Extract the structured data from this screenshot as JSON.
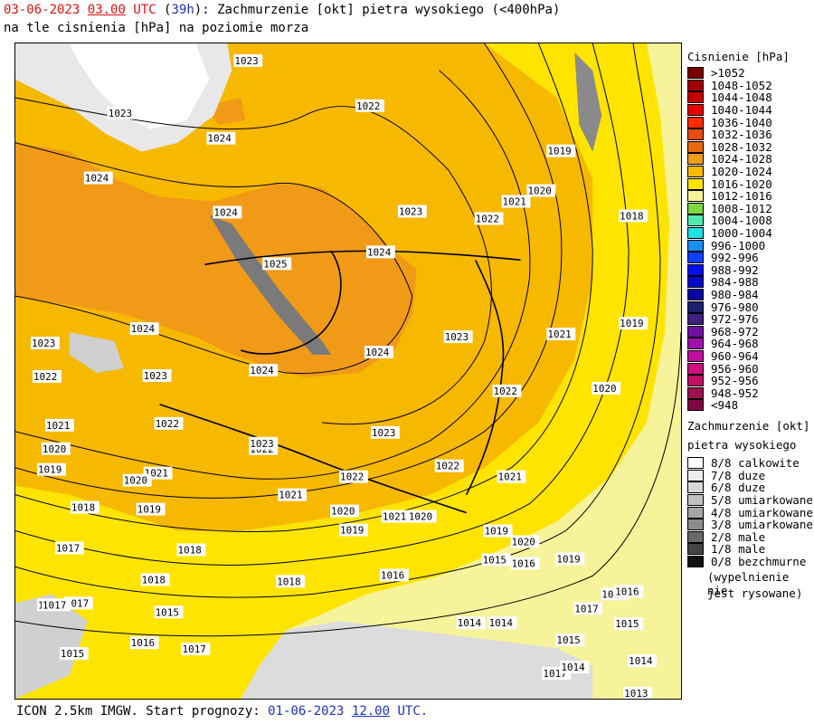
{
  "header": {
    "date": "03-06-2023",
    "time": "03.00",
    "tz": "UTC",
    "lead": "39h",
    "title_rest": ": Zachmurzenie [okt] pietra wysokiego (<400hPa)",
    "line2": "na tle cisnienia [hPa] na poziomie morza"
  },
  "legend_pressure": {
    "title": "Cisnienie [hPa]",
    "items": [
      {
        "label": ">1052",
        "color": "#7a0000"
      },
      {
        "label": "1048-1052",
        "color": "#a00000"
      },
      {
        "label": "1044-1048",
        "color": "#c80000"
      },
      {
        "label": "1040-1044",
        "color": "#e80000"
      },
      {
        "label": "1036-1040",
        "color": "#ff2a00"
      },
      {
        "label": "1032-1036",
        "color": "#e84c10"
      },
      {
        "label": "1028-1032",
        "color": "#e86a10"
      },
      {
        "label": "1024-1028",
        "color": "#f09a18"
      },
      {
        "label": "1020-1024",
        "color": "#f7b800"
      },
      {
        "label": "1016-1020",
        "color": "#ffe400"
      },
      {
        "label": "1012-1016",
        "color": "#f6f39a"
      },
      {
        "label": "1008-1012",
        "color": "#7cd840"
      },
      {
        "label": "1004-1008",
        "color": "#50e8b0"
      },
      {
        "label": "1000-1004",
        "color": "#20e0e0"
      },
      {
        "label": "996-1000",
        "color": "#1890f0"
      },
      {
        "label": "992-996",
        "color": "#1040ff"
      },
      {
        "label": "988-992",
        "color": "#0010f0"
      },
      {
        "label": "984-988",
        "color": "#0808c8"
      },
      {
        "label": "980-984",
        "color": "#0808a0"
      },
      {
        "label": "976-980",
        "color": "#202070"
      },
      {
        "label": "972-976",
        "color": "#402080"
      },
      {
        "label": "968-972",
        "color": "#7010a0"
      },
      {
        "label": "964-968",
        "color": "#a010b0"
      },
      {
        "label": "960-964",
        "color": "#c010a0"
      },
      {
        "label": "956-960",
        "color": "#d01080"
      },
      {
        "label": "952-956",
        "color": "#c01060"
      },
      {
        "label": "948-952",
        "color": "#a01050"
      },
      {
        "label": "<948",
        "color": "#800840"
      }
    ]
  },
  "legend_cloud": {
    "title1": "Zachmurzenie [okt]",
    "title2": "pietra wysokiego",
    "items": [
      {
        "label": "8/8 calkowite",
        "color": "#ffffff"
      },
      {
        "label": "7/8 duze",
        "color": "#ececec"
      },
      {
        "label": "6/8 duze",
        "color": "#d8d8d8"
      },
      {
        "label": "5/8 umiarkowane",
        "color": "#c0c0c0"
      },
      {
        "label": "4/8 umiarkowane",
        "color": "#a6a6a6"
      },
      {
        "label": "3/8 umiarkowane",
        "color": "#8c8c8c"
      },
      {
        "label": "2/8 male",
        "color": "#6a6a6a"
      },
      {
        "label": "1/8 male",
        "color": "#444444"
      },
      {
        "label": "0/8 bezchmurne",
        "color": "#111111"
      }
    ],
    "note1": "(wypelnienie nie",
    "note2": "jest rysowane)"
  },
  "footer": {
    "prefix": "ICON 2.5km IMGW. Start prognozy: ",
    "date": "01-06-2023",
    "time": "12.00",
    "tz": "UTC."
  },
  "isobar_labels": [
    {
      "t": "1023"
    },
    {
      "t": "1022"
    },
    {
      "t": "1023"
    },
    {
      "t": "1024"
    },
    {
      "t": "1019"
    },
    {
      "t": "1024"
    },
    {
      "t": "1024"
    },
    {
      "t": "1021"
    },
    {
      "t": "1020"
    },
    {
      "t": "1023"
    },
    {
      "t": "1022"
    },
    {
      "t": "1018"
    },
    {
      "t": "1025"
    },
    {
      "t": "1024"
    },
    {
      "t": "1024"
    },
    {
      "t": "1023"
    },
    {
      "t": "1021"
    },
    {
      "t": "1019"
    },
    {
      "t": "1023"
    },
    {
      "t": "1024"
    },
    {
      "t": "1022"
    },
    {
      "t": "1023"
    },
    {
      "t": "1024"
    },
    {
      "t": "1020"
    },
    {
      "t": "1022"
    },
    {
      "t": "1021"
    },
    {
      "t": "1022"
    },
    {
      "t": "1023"
    },
    {
      "t": "1022"
    },
    {
      "t": "1023"
    },
    {
      "t": "1020"
    },
    {
      "t": "1022"
    },
    {
      "t": "1019"
    },
    {
      "t": "1021"
    },
    {
      "t": "1022"
    },
    {
      "t": "1021"
    },
    {
      "t": "1020"
    },
    {
      "t": "1021"
    },
    {
      "t": "1018"
    },
    {
      "t": "1019"
    },
    {
      "t": "1020"
    },
    {
      "t": "1021"
    },
    {
      "t": "1020"
    },
    {
      "t": "1019"
    },
    {
      "t": "1018"
    },
    {
      "t": "1017"
    },
    {
      "t": "1020"
    },
    {
      "t": "1019"
    },
    {
      "t": "1017"
    },
    {
      "t": "1018"
    },
    {
      "t": "1015"
    },
    {
      "t": "1016"
    },
    {
      "t": "1019"
    },
    {
      "t": "1017"
    },
    {
      "t": "1018"
    },
    {
      "t": "1016"
    },
    {
      "t": "1015"
    },
    {
      "t": "1017"
    },
    {
      "t": "1016"
    },
    {
      "t": "1017"
    },
    {
      "t": "1014"
    },
    {
      "t": "1017"
    },
    {
      "t": "1013"
    },
    {
      "t": "1015"
    },
    {
      "t": "1014"
    },
    {
      "t": "1015"
    },
    {
      "t": "1016"
    },
    {
      "t": "1014"
    },
    {
      "t": "1017"
    },
    {
      "t": "1014"
    },
    {
      "t": "1015"
    },
    {
      "t": "1016"
    }
  ]
}
